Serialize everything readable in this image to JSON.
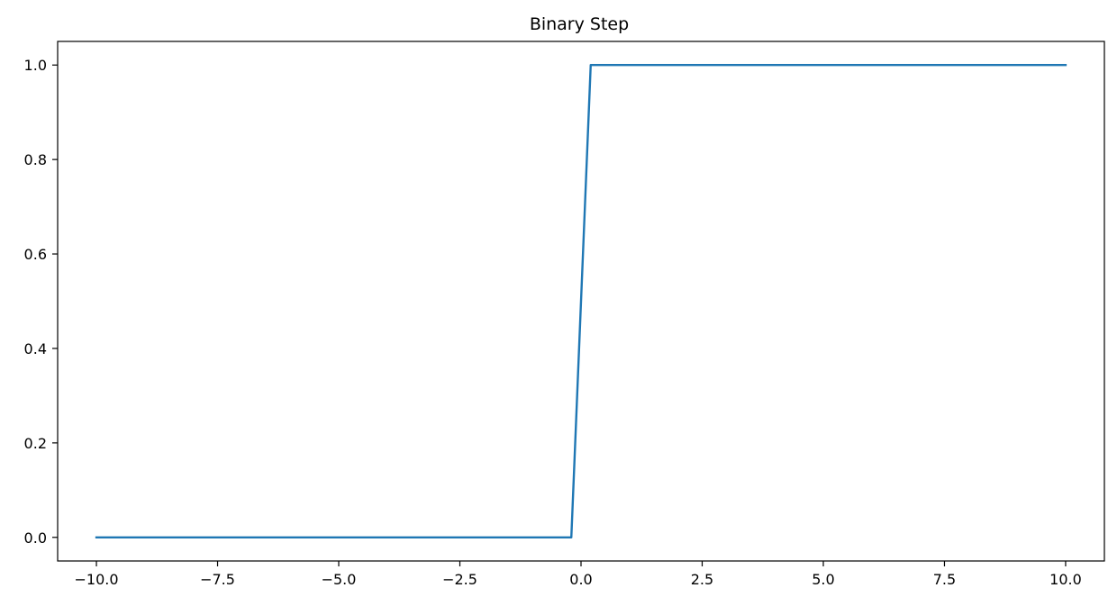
{
  "chart_data": {
    "type": "line",
    "title": "Binary Step",
    "xlabel": "",
    "ylabel": "",
    "xlim": [
      -10.8,
      10.8
    ],
    "ylim": [
      -0.05,
      1.05
    ],
    "x_ticks": [
      -10.0,
      -7.5,
      -5.0,
      -2.5,
      0.0,
      2.5,
      5.0,
      7.5,
      10.0
    ],
    "x_tick_labels": [
      "−10.0",
      "−7.5",
      "−5.0",
      "−2.5",
      "0.0",
      "2.5",
      "5.0",
      "7.5",
      "10.0"
    ],
    "y_ticks": [
      0.0,
      0.2,
      0.4,
      0.6,
      0.8,
      1.0
    ],
    "y_tick_labels": [
      "0.0",
      "0.2",
      "0.4",
      "0.6",
      "0.8",
      "1.0"
    ],
    "grid": false,
    "series": [
      {
        "color": "#1f77b4",
        "x": [
          -10.0,
          -0.2,
          0.2,
          10.0
        ],
        "y": [
          0,
          0,
          1,
          1
        ]
      }
    ]
  }
}
